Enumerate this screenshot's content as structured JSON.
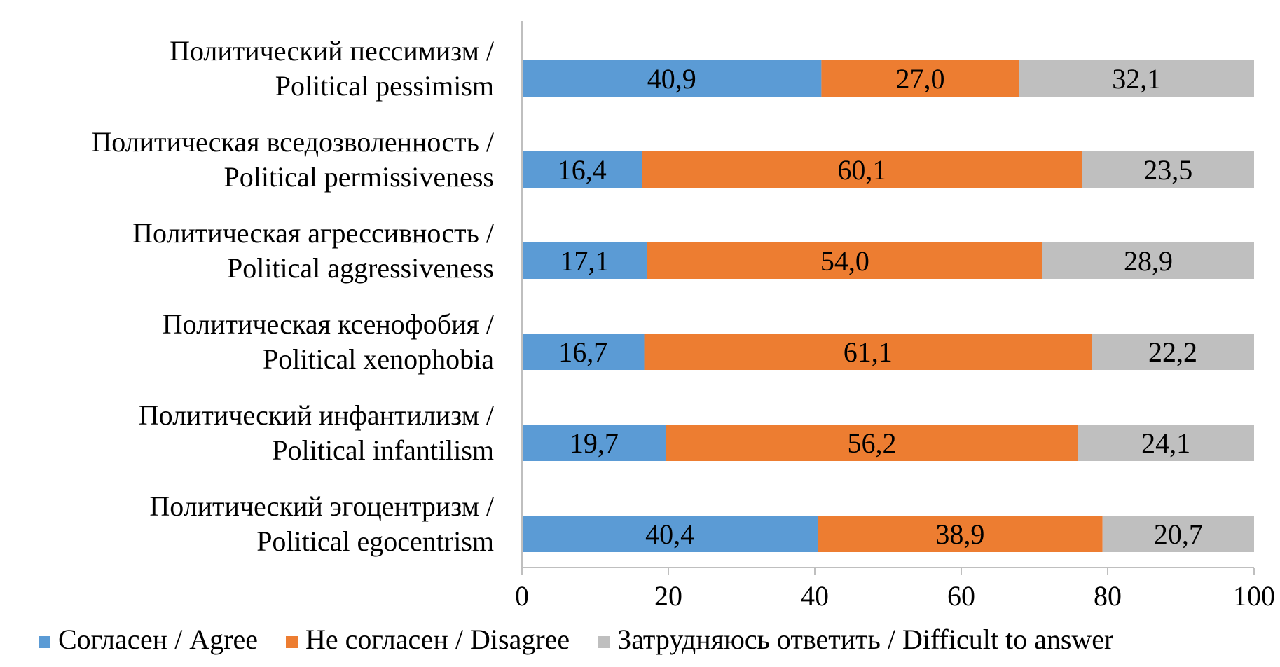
{
  "chart_data": {
    "type": "bar",
    "orientation": "horizontal",
    "stacked": true,
    "title": "",
    "xlabel": "",
    "ylabel": "",
    "xlim": [
      0,
      100
    ],
    "x_ticks": [
      "0",
      "20",
      "40",
      "60",
      "80",
      "100"
    ],
    "grid": false,
    "legend_position": "bottom",
    "categories": [
      {
        "line1": "Политический пессимизм /",
        "line2": "Political pessimism"
      },
      {
        "line1": "Политическая вседозволенность /",
        "line2": "Political permissiveness"
      },
      {
        "line1": "Политическая агрессивность /",
        "line2": "Political aggressiveness"
      },
      {
        "line1": "Политическая ксенофобия /",
        "line2": "Political xenophobia"
      },
      {
        "line1": "Политический инфантилизм /",
        "line2": "Political infantilism"
      },
      {
        "line1": "Политический эгоцентризм /",
        "line2": "Political egocentrism"
      }
    ],
    "series": [
      {
        "name": "Согласен / Agree",
        "color": "#5b9bd5",
        "values": [
          40.9,
          16.4,
          17.1,
          16.7,
          19.7,
          40.4
        ],
        "labels": [
          "40,9",
          "16,4",
          "17,1",
          "16,7",
          "19,7",
          "40,4"
        ]
      },
      {
        "name": "Не согласен / Disagree",
        "color": "#ed7d31",
        "values": [
          27.0,
          60.1,
          54.0,
          61.1,
          56.2,
          38.9
        ],
        "labels": [
          "27,0",
          "60,1",
          "54,0",
          "61,1",
          "56,2",
          "38,9"
        ]
      },
      {
        "name": "Затрудняюсь ответить / Difficult to answer",
        "color": "#bfbfbf",
        "values": [
          32.1,
          23.5,
          28.9,
          22.2,
          24.1,
          20.7
        ],
        "labels": [
          "32,1",
          "23,5",
          "28,9",
          "22,2",
          "24,1",
          "20,7"
        ]
      }
    ]
  }
}
